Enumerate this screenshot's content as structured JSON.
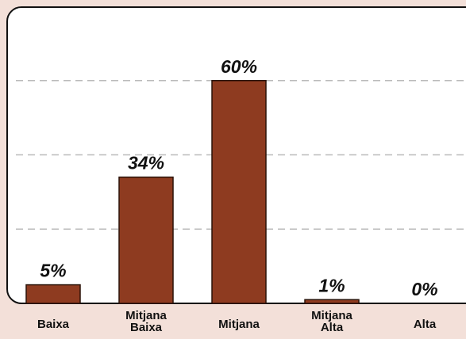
{
  "chart_data": {
    "type": "bar",
    "categories": [
      "Baixa",
      "Mitjana Baixa",
      "Mitjana",
      "Mitjana Alta",
      "Alta"
    ],
    "values": [
      5,
      34,
      60,
      1,
      0
    ],
    "value_labels": [
      "5%",
      "34%",
      "60%",
      "1%",
      "0%"
    ],
    "color": "#8e3b20",
    "ylim": [
      0,
      80
    ],
    "yticks": [
      20,
      40,
      60
    ],
    "grid": true
  }
}
